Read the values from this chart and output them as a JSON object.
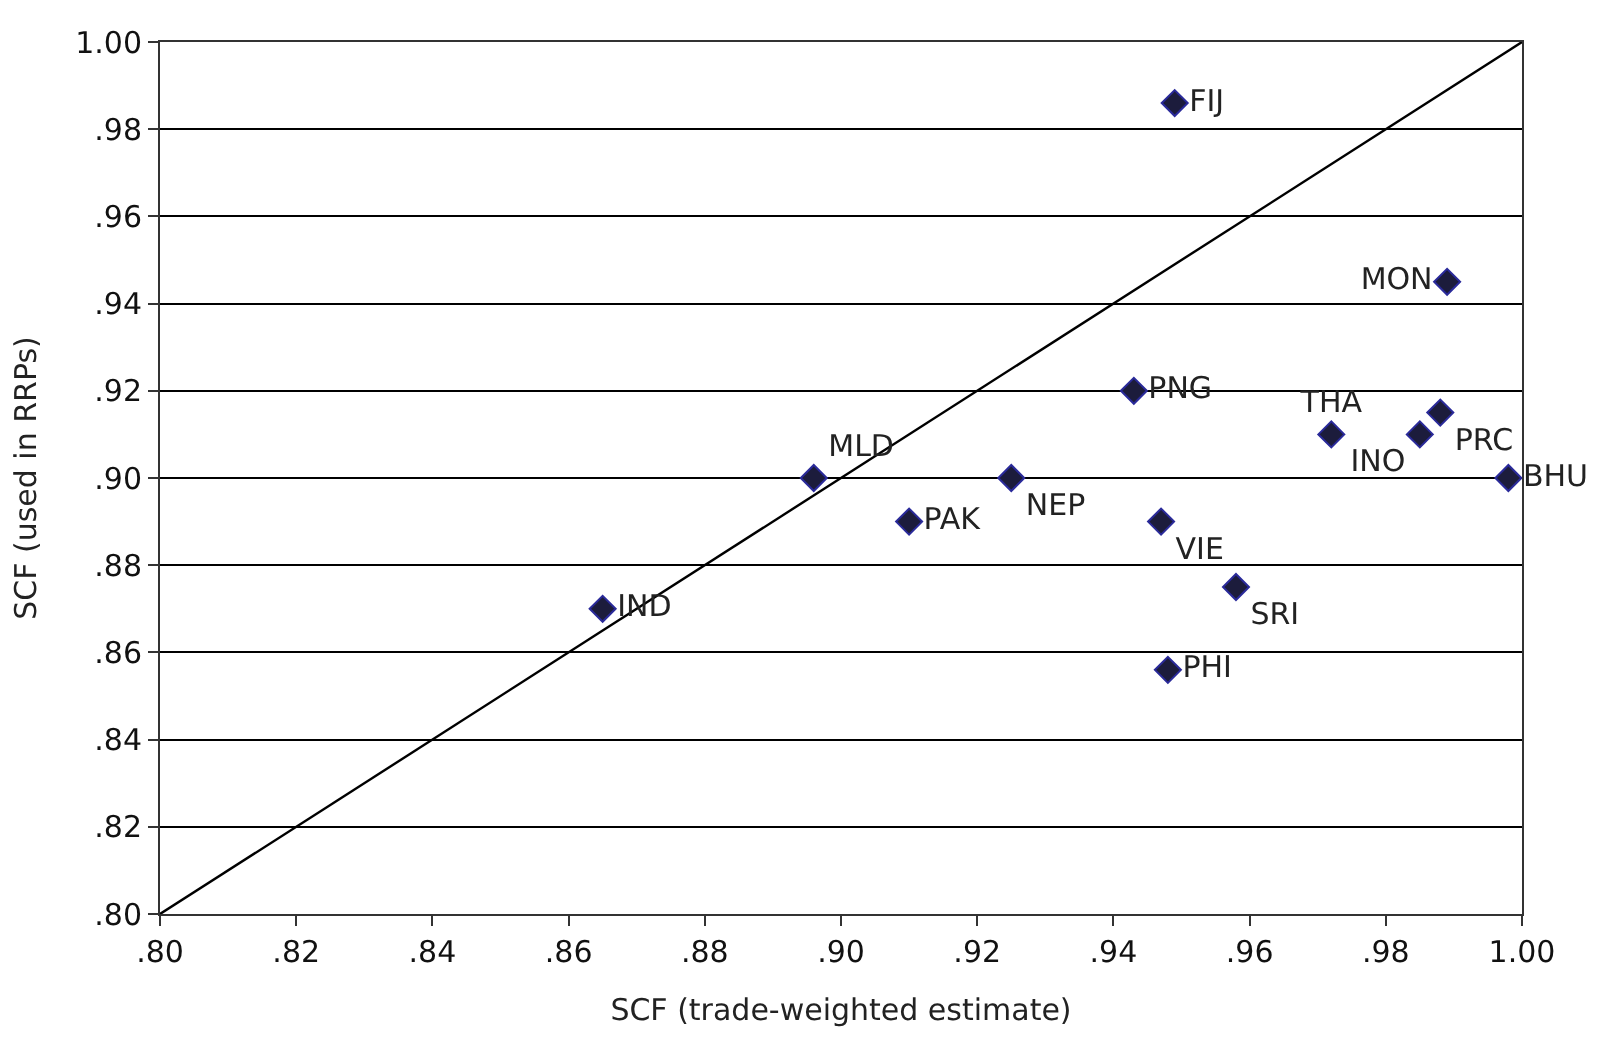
{
  "chart_data": {
    "type": "scatter",
    "xlabel": "SCF (trade-weighted estimate)",
    "ylabel": "SCF (used in RRPs)",
    "xlim": [
      0.8,
      1.0
    ],
    "ylim": [
      0.8,
      1.0
    ],
    "xticks": [
      {
        "value": 0.8,
        "label": ".80"
      },
      {
        "value": 0.82,
        "label": ".82"
      },
      {
        "value": 0.84,
        "label": ".84"
      },
      {
        "value": 0.86,
        "label": ".86"
      },
      {
        "value": 0.88,
        "label": ".88"
      },
      {
        "value": 0.9,
        "label": ".90"
      },
      {
        "value": 0.92,
        "label": ".92"
      },
      {
        "value": 0.94,
        "label": ".94"
      },
      {
        "value": 0.96,
        "label": ".96"
      },
      {
        "value": 0.98,
        "label": ".98"
      },
      {
        "value": 1.0,
        "label": "1.00"
      }
    ],
    "yticks": [
      {
        "value": 0.8,
        "label": ".80"
      },
      {
        "value": 0.82,
        "label": ".82"
      },
      {
        "value": 0.84,
        "label": ".84"
      },
      {
        "value": 0.86,
        "label": ".86"
      },
      {
        "value": 0.88,
        "label": ".88"
      },
      {
        "value": 0.9,
        "label": ".90"
      },
      {
        "value": 0.92,
        "label": ".92"
      },
      {
        "value": 0.94,
        "label": ".94"
      },
      {
        "value": 0.96,
        "label": ".96"
      },
      {
        "value": 0.98,
        "label": ".98"
      },
      {
        "value": 1.0,
        "label": "1.00"
      }
    ],
    "grid": "y",
    "marker": "diamond",
    "legend": false,
    "series": [
      {
        "type": "line",
        "color": "#000000",
        "x": [
          0.8,
          1.0
        ],
        "values": [
          0.8,
          1.0
        ],
        "marker": "none"
      },
      {
        "name": "FIJ",
        "color": "#1c1c3c",
        "x": [
          0.949
        ],
        "values": [
          0.986
        ]
      },
      {
        "name": "MON",
        "color": "#1c1c3c",
        "x": [
          0.989
        ],
        "values": [
          0.945
        ]
      },
      {
        "name": "PNG",
        "color": "#1c1c3c",
        "x": [
          0.943
        ],
        "values": [
          0.92
        ]
      },
      {
        "name": "PRC",
        "color": "#1c1c3c",
        "x": [
          0.988
        ],
        "values": [
          0.915
        ]
      },
      {
        "name": "INO",
        "color": "#1c1c3c",
        "x": [
          0.985
        ],
        "values": [
          0.91
        ]
      },
      {
        "name": "THA",
        "color": "#1c1c3c",
        "x": [
          0.972
        ],
        "values": [
          0.91
        ]
      },
      {
        "name": "MLD",
        "color": "#1c1c3c",
        "x": [
          0.896
        ],
        "values": [
          0.9
        ]
      },
      {
        "name": "NEP",
        "color": "#1c1c3c",
        "x": [
          0.925
        ],
        "values": [
          0.9
        ]
      },
      {
        "name": "BHU",
        "color": "#1c1c3c",
        "x": [
          0.998
        ],
        "values": [
          0.9
        ]
      },
      {
        "name": "PAK",
        "color": "#1c1c3c",
        "x": [
          0.91
        ],
        "values": [
          0.89
        ]
      },
      {
        "name": "VIE",
        "color": "#1c1c3c",
        "x": [
          0.947
        ],
        "values": [
          0.89
        ]
      },
      {
        "name": "SRI",
        "color": "#1c1c3c",
        "x": [
          0.958
        ],
        "values": [
          0.875
        ]
      },
      {
        "name": "IND",
        "color": "#1c1c3c",
        "x": [
          0.865
        ],
        "values": [
          0.87
        ]
      },
      {
        "name": "PHI",
        "color": "#1c1c3c",
        "x": [
          0.948
        ],
        "values": [
          0.856
        ]
      }
    ]
  }
}
